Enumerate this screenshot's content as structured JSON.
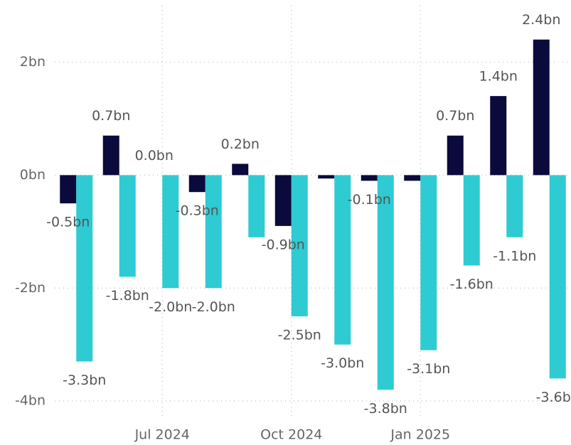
{
  "chart_data": {
    "type": "bar",
    "categories": [
      null,
      null,
      "Jul 2024",
      null,
      null,
      "Oct 2024",
      null,
      null,
      "Jan 2025",
      null,
      null,
      null
    ],
    "series": [
      {
        "color": "#0b0a3c",
        "values": [
          -0.5,
          0.7,
          0.0,
          -0.3,
          0.2,
          -0.9,
          -0.06,
          -0.1,
          -0.1,
          0.7,
          1.4,
          2.4
        ],
        "value_labels": [
          "-0.5bn",
          "0.7bn",
          "0.0bn",
          "-0.3bn",
          "0.2bn",
          "-0.9bn",
          null,
          "-0.1bn",
          null,
          "0.7bn",
          "1.4bn",
          "2.4bn"
        ]
      },
      {
        "color": "#2ecbd3",
        "values": [
          -3.3,
          -1.8,
          -2.0,
          -2.0,
          -1.1,
          -2.5,
          -3.0,
          -3.8,
          -3.1,
          -1.6,
          -1.1,
          -3.6
        ],
        "value_labels": [
          "-3.3bn",
          "-1.8bn",
          "-2.0bn",
          "-2.0bn",
          null,
          "-2.5bn",
          "-3.0bn",
          "-3.8bn",
          "-3.1bn",
          "-1.6bn",
          "-1.1bn",
          "-3.6bn"
        ]
      }
    ],
    "ylim": [
      -4.3,
      3
    ],
    "yticks": [
      {
        "value": -4,
        "label": "-4bn"
      },
      {
        "value": -2,
        "label": "-2bn"
      },
      {
        "value": 0,
        "label": "0bn"
      },
      {
        "value": 2,
        "label": "2bn"
      }
    ],
    "grid": true
  }
}
